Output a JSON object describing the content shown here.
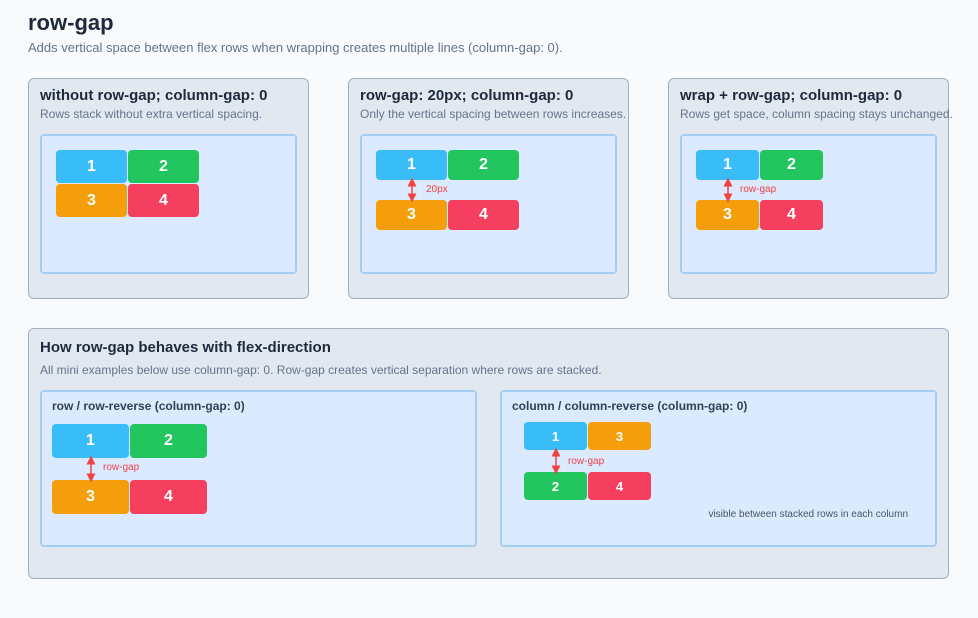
{
  "header": {
    "title": "row-gap",
    "subtitle": "Adds vertical space between flex rows when wrapping creates multiple lines (column-gap: 0)."
  },
  "panels": [
    {
      "title": "without row-gap; column-gap: 0",
      "description": "Rows stack without extra vertical spacing.",
      "items": [
        "1",
        "2",
        "3",
        "4"
      ]
    },
    {
      "title": "row-gap: 20px; column-gap: 0",
      "description": "Only the vertical spacing between rows increases.",
      "items": [
        "1",
        "2",
        "3",
        "4"
      ],
      "gap_label": "20px"
    },
    {
      "title": "wrap + row-gap; column-gap: 0",
      "description": "Rows get space, column spacing stays unchanged.",
      "items": [
        "1",
        "2",
        "3",
        "4"
      ],
      "gap_label": "row-gap"
    }
  ],
  "behavior": {
    "title": "How row-gap behaves with flex-direction",
    "description": "All mini examples below use column-gap: 0. Row-gap creates vertical separation where rows are stacked.",
    "examples": [
      {
        "title": "row / row-reverse (column-gap: 0)",
        "items": [
          "1",
          "2",
          "3",
          "4"
        ],
        "gap_label": "row-gap"
      },
      {
        "title": "column / column-reverse (column-gap: 0)",
        "items": [
          "1",
          "3",
          "2",
          "4"
        ],
        "gap_label": "row-gap",
        "note": "visible between stacked rows in each column"
      }
    ]
  }
}
